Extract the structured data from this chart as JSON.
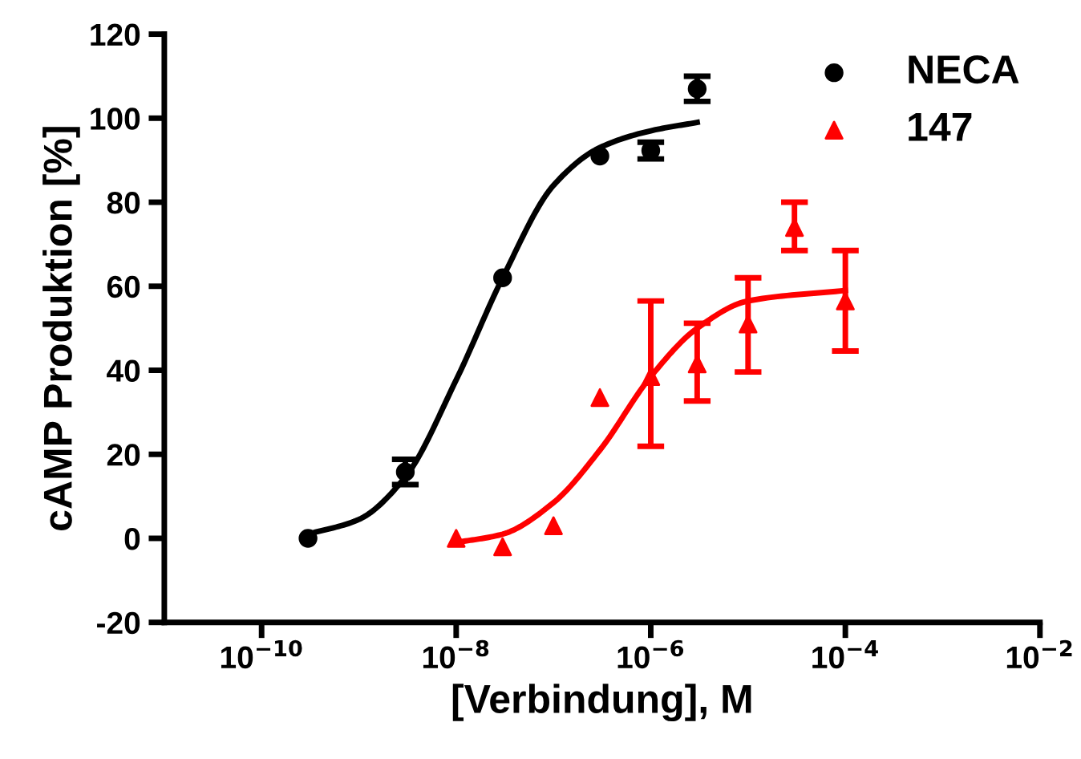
{
  "chart_data": {
    "type": "scatter",
    "xlabel": "[Verbindung], M",
    "ylabel": "cAMP Produktion [%]",
    "log": "x",
    "grid": false,
    "legend": "top right",
    "xlim": [
      1e-11,
      0.01
    ],
    "xticks": [
      {
        "value": 1e-10,
        "label": "10$^{−10}$"
      },
      {
        "value": 1e-08,
        "label": "10$^{−8}$"
      },
      {
        "value": 1e-06,
        "label": "10$^{−6}$"
      },
      {
        "value": 0.0001,
        "label": "10$^{−4}$"
      },
      {
        "value": 0.01,
        "label": "10$^{−2}$"
      }
    ],
    "ylim": [
      -20,
      120
    ],
    "yticks": [
      -20,
      0,
      20,
      40,
      60,
      80,
      100,
      120
    ],
    "series": [
      {
        "name": "NECA",
        "marker": "circle",
        "color": "#000000",
        "x": [
          3e-10,
          3e-09,
          3e-08,
          3e-07,
          1e-06,
          3e-06
        ],
        "values": [
          0,
          15.8,
          62,
          91,
          92.3,
          107
        ],
        "errors": [
          null,
          3,
          null,
          null,
          2,
          3
        ]
      },
      {
        "name": "147",
        "marker": "triangle",
        "color": "#ff0000",
        "x": [
          1e-08,
          3e-08,
          1e-07,
          3e-07,
          1e-06,
          3e-06,
          1e-05,
          3e-05,
          0.0001
        ],
        "values": [
          0,
          -2,
          3,
          33.5,
          38.5,
          41.5,
          51,
          74,
          56.5
        ],
        "errors": [
          null,
          null,
          null,
          null,
          [
            21.9,
            56.5
          ],
          [
            32.7,
            51.2
          ],
          [
            39.6,
            62
          ],
          [
            68.5,
            80
          ],
          [
            44.6,
            68.5
          ]
        ]
      },
      {
        "type": "line",
        "color": "#000000",
        "x": [
          3e-10,
          1e-09,
          3e-09,
          1e-08,
          3e-08,
          1e-07,
          3e-07,
          1e-06,
          3e-06
        ],
        "values": [
          1,
          4.5,
          14.6,
          37.7,
          62,
          84,
          93,
          97,
          99
        ]
      },
      {
        "type": "line",
        "color": "#ff0000",
        "x": [
          1e-08,
          3e-08,
          1e-07,
          3e-07,
          1e-06,
          3e-06,
          1e-05,
          0.0001
        ],
        "values": [
          -1,
          1,
          8.5,
          21,
          38.5,
          50,
          56.5,
          59
        ]
      }
    ]
  }
}
